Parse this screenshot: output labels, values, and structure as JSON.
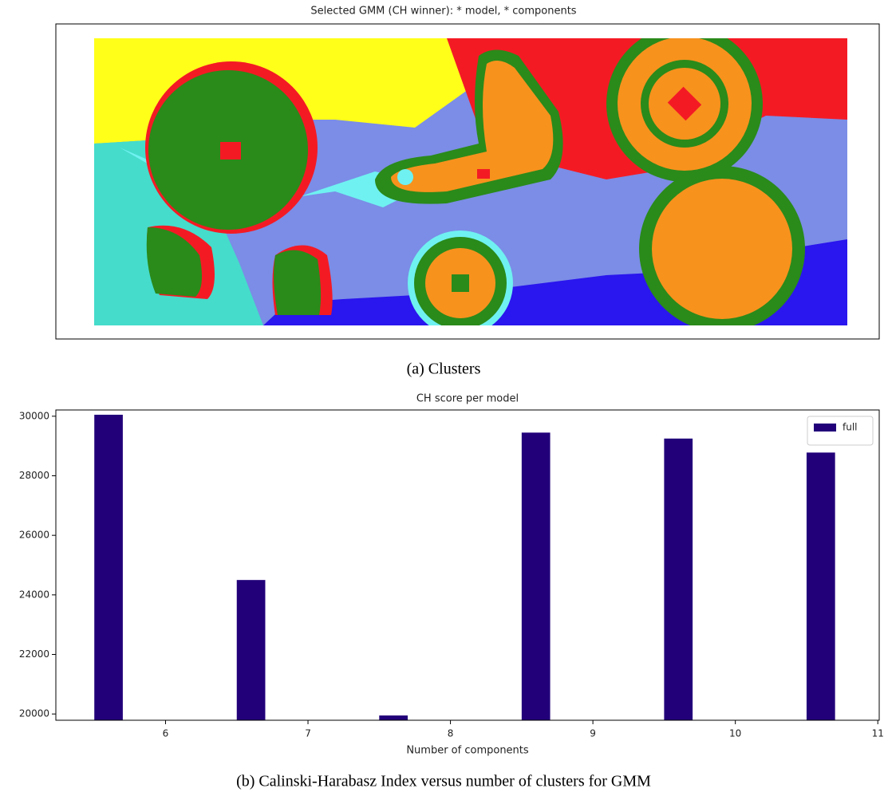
{
  "panel_a": {
    "title": "Selected GMM (CH winner): * model, * components",
    "caption": "(a) Clusters"
  },
  "chart_data": {
    "type": "bar",
    "title": "CH score per model",
    "xlabel": "Number of components",
    "caption": "(b) Calinski-Harabasz Index versus number of clusters for GMM",
    "x": [
      5.6,
      6.6,
      7.6,
      8.6,
      9.6,
      10.6
    ],
    "series": [
      {
        "name": "full",
        "color": "#22007a",
        "values": [
          30050,
          24500,
          19950,
          29450,
          29250,
          28780
        ]
      }
    ],
    "xlim": [
      5.23,
      11.01
    ],
    "xticks": [
      6,
      7,
      8,
      9,
      10,
      11
    ],
    "ylim": [
      19790,
      30210
    ],
    "yticks": [
      20000,
      22000,
      24000,
      26000,
      28000,
      30000
    ],
    "legend": "upper right"
  }
}
